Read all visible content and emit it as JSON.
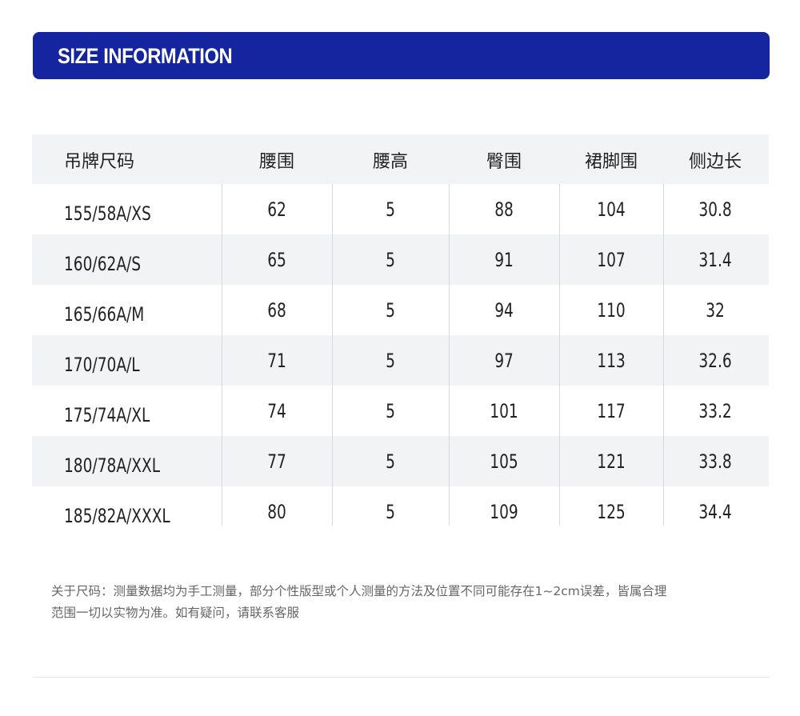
{
  "banner": {
    "title": "SIZE INFORMATION",
    "background": "#1525a0"
  },
  "table": {
    "headers": [
      "吊牌尺码",
      "腰围",
      "腰高",
      "臀围",
      "裙脚围",
      "侧边长"
    ],
    "rows": [
      [
        "155/58A/XS",
        "62",
        "5",
        "88",
        "104",
        "30.8"
      ],
      [
        "160/62A/S",
        "65",
        "5",
        "91",
        "107",
        "31.4"
      ],
      [
        "165/66A/M",
        "68",
        "5",
        "94",
        "110",
        "32"
      ],
      [
        "170/70A/L",
        "71",
        "5",
        "97",
        "113",
        "32.6"
      ],
      [
        "175/74A/XL",
        "74",
        "5",
        "101",
        "117",
        "33.2"
      ],
      [
        "180/78A/XXL",
        "77",
        "5",
        "105",
        "121",
        "33.8"
      ],
      [
        "185/82A/XXXL",
        "80",
        "5",
        "109",
        "125",
        "34.4"
      ]
    ]
  },
  "note": {
    "line1": "关于尺码：测量数据均为手工测量，部分个性版型或个人测量的方法及位置不同可能存在1~2cm误差，皆属合理",
    "line2": "范围一切以实物为准。如有疑问，请联系客服"
  }
}
